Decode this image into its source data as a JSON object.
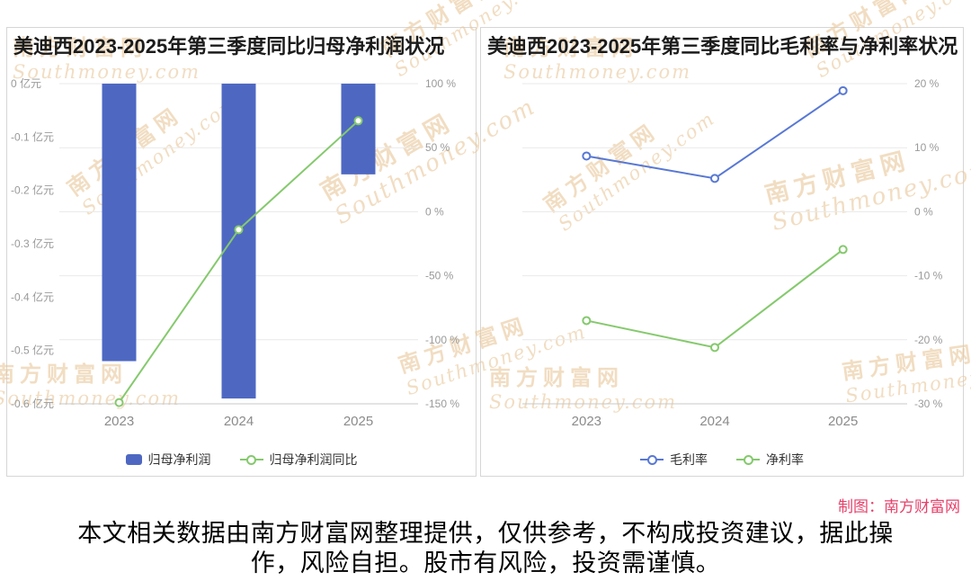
{
  "page": {
    "credit": "制图：南方财富网",
    "credit_color": "#e5426b",
    "disclaimer_line1": "本文相关数据由南方财富网整理提供，仅供参考，不构成投资建议，据此操",
    "disclaimer_line2": "作，风险自担。股市有风险，投资需谨慎。",
    "watermark_cn": "南方财富网",
    "watermark_en": "Southmoney.com"
  },
  "chart_data": [
    {
      "type": "bar",
      "title": "美迪西2023-2025年第三季度同比归母净利润状况",
      "categories": [
        "2023",
        "2024",
        "2025"
      ],
      "series": [
        {
          "name": "归母净利润",
          "kind": "bar",
          "axis": "left",
          "unit": "亿元",
          "values": [
            -0.52,
            -0.59,
            -0.17
          ],
          "color": "#4e68c2"
        },
        {
          "name": "归母净利润同比",
          "kind": "line",
          "axis": "right",
          "unit": "%",
          "values": [
            -149,
            -14,
            71
          ],
          "color": "#85c96d"
        }
      ],
      "left_axis": {
        "min": -0.6,
        "max": 0,
        "ticks": [
          "0 亿元",
          "-0.1 亿元",
          "-0.2 亿元",
          "-0.3 亿元",
          "-0.4 亿元",
          "-0.5 亿元",
          "-0.6 亿元"
        ]
      },
      "right_axis": {
        "min": -150,
        "max": 100,
        "ticks": [
          "100 %",
          "50 %",
          "0 %",
          "-50 %",
          "-100 %",
          "-150 %"
        ]
      },
      "grid": true,
      "legend_position": "bottom"
    },
    {
      "type": "line",
      "title": "美迪西2023-2025年第三季度同比毛利率与净利率状况",
      "categories": [
        "2023",
        "2024",
        "2025"
      ],
      "series": [
        {
          "name": "毛利率",
          "kind": "line",
          "axis": "right",
          "unit": "%",
          "values": [
            8.7,
            5.2,
            18.9
          ],
          "color": "#5878d4"
        },
        {
          "name": "净利率",
          "kind": "line",
          "axis": "right",
          "unit": "%",
          "values": [
            -17.0,
            -21.2,
            -5.9
          ],
          "color": "#85c96d"
        }
      ],
      "right_axis": {
        "min": -30,
        "max": 20,
        "ticks": [
          "20 %",
          "10 %",
          "0 %",
          "-10 %",
          "-20 %",
          "-30 %"
        ]
      },
      "grid": true,
      "legend_position": "bottom"
    }
  ]
}
